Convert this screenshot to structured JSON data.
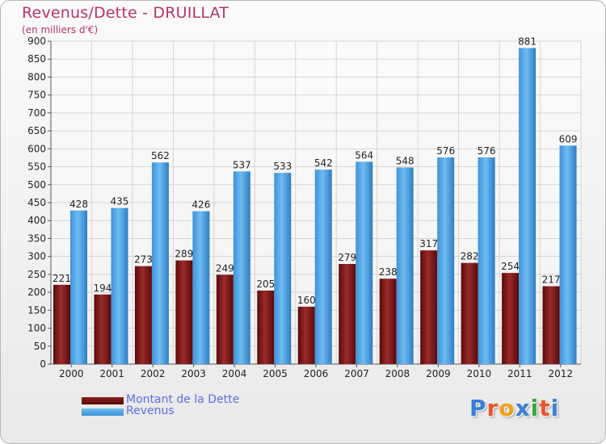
{
  "title": "Revenus/Dette - DRUILLAT",
  "subtitle": "(en milliers d'€)",
  "legend": [
    {
      "label": "Montant de la Dette",
      "color": "#6a0f0f"
    },
    {
      "label": "Revenus",
      "color": "#4aa3e6"
    }
  ],
  "logo": {
    "text": "Proxiti",
    "colors": [
      "#3a7fd5",
      "#e8552b",
      "#f0a020",
      "#3a7fd5",
      "#3aa63a",
      "#e8552b",
      "#3a7fd5"
    ]
  },
  "chart_data": {
    "type": "bar",
    "categories": [
      "2000",
      "2001",
      "2002",
      "2003",
      "2004",
      "2005",
      "2006",
      "2007",
      "2008",
      "2009",
      "2010",
      "2011",
      "2012"
    ],
    "series": [
      {
        "name": "Montant de la Dette",
        "values": [
          221,
          194,
          273,
          289,
          249,
          205,
          160,
          279,
          238,
          317,
          282,
          254,
          217
        ],
        "color": "#6a0f0f"
      },
      {
        "name": "Revenus",
        "values": [
          428,
          435,
          562,
          426,
          537,
          533,
          542,
          564,
          548,
          576,
          576,
          881,
          609
        ],
        "color": "#4aa3e6"
      }
    ],
    "ylim": [
      0,
      900
    ],
    "yticks": [
      0,
      50,
      100,
      150,
      200,
      250,
      300,
      350,
      400,
      450,
      500,
      550,
      600,
      650,
      700,
      750,
      800,
      850,
      900
    ],
    "grid": true,
    "legend_position": "bottom-left"
  }
}
